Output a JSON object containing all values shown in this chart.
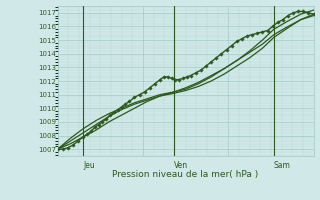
{
  "title": "Pression niveau de la mer( hPa )",
  "bg_color": "#d0e8e8",
  "grid_color_major": "#a0c8c8",
  "grid_color_minor": "#b8d8d8",
  "line_color": "#2d5a1b",
  "marker_color": "#2d5a1b",
  "tick_label_color": "#2d5a1b",
  "vline_color": "#2d5a1b",
  "xlabel_color": "#2d5a1b",
  "ylim": [
    1006.5,
    1017.5
  ],
  "yticks": [
    1007,
    1008,
    1009,
    1010,
    1011,
    1012,
    1013,
    1014,
    1015,
    1016,
    1017
  ],
  "day_labels": [
    "Jeu",
    "Ven",
    "Sam"
  ],
  "day_positions": [
    0.1,
    0.455,
    0.845
  ],
  "xlim": [
    0.0,
    1.0
  ],
  "lines": [
    {
      "x": [
        0.0,
        0.02,
        0.04,
        0.06,
        0.08,
        0.1,
        0.115,
        0.13,
        0.145,
        0.16,
        0.175,
        0.19,
        0.205,
        0.22,
        0.235,
        0.25,
        0.265,
        0.28,
        0.3,
        0.32,
        0.34,
        0.36,
        0.38,
        0.4,
        0.415,
        0.43,
        0.445,
        0.46,
        0.475,
        0.49,
        0.505,
        0.52,
        0.54,
        0.56,
        0.58,
        0.6,
        0.62,
        0.64,
        0.66,
        0.68,
        0.7,
        0.72,
        0.74,
        0.76,
        0.78,
        0.8,
        0.82,
        0.84,
        0.86,
        0.88,
        0.9,
        0.92,
        0.94,
        0.96,
        0.98,
        1.0
      ],
      "y": [
        1007.0,
        1007.0,
        1007.1,
        1007.3,
        1007.6,
        1007.9,
        1008.1,
        1008.3,
        1008.6,
        1008.8,
        1009.0,
        1009.2,
        1009.5,
        1009.7,
        1009.9,
        1010.1,
        1010.3,
        1010.5,
        1010.8,
        1011.0,
        1011.2,
        1011.5,
        1011.8,
        1012.1,
        1012.3,
        1012.3,
        1012.2,
        1012.1,
        1012.1,
        1012.2,
        1012.3,
        1012.4,
        1012.6,
        1012.8,
        1013.1,
        1013.4,
        1013.7,
        1014.0,
        1014.3,
        1014.6,
        1014.9,
        1015.1,
        1015.3,
        1015.4,
        1015.5,
        1015.6,
        1015.7,
        1016.0,
        1016.3,
        1016.5,
        1016.8,
        1017.0,
        1017.1,
        1017.1,
        1017.0,
        1016.9
      ],
      "has_markers": true,
      "linewidth": 1.0
    },
    {
      "x": [
        0.0,
        0.05,
        0.1,
        0.15,
        0.2,
        0.25,
        0.3,
        0.35,
        0.4,
        0.455,
        0.5,
        0.55,
        0.6,
        0.65,
        0.7,
        0.75,
        0.8,
        0.845,
        0.9,
        0.95,
        1.0
      ],
      "y": [
        1007.0,
        1007.4,
        1007.9,
        1008.4,
        1009.0,
        1009.5,
        1010.0,
        1010.5,
        1010.9,
        1011.2,
        1011.5,
        1011.9,
        1012.4,
        1012.9,
        1013.5,
        1014.1,
        1014.7,
        1015.4,
        1016.0,
        1016.5,
        1016.8
      ],
      "has_markers": false,
      "linewidth": 0.9
    },
    {
      "x": [
        0.0,
        0.05,
        0.1,
        0.15,
        0.2,
        0.25,
        0.3,
        0.35,
        0.4,
        0.455,
        0.5,
        0.55,
        0.6,
        0.65,
        0.7,
        0.75,
        0.8,
        0.845,
        0.9,
        0.95,
        1.0
      ],
      "y": [
        1007.0,
        1007.6,
        1008.2,
        1008.8,
        1009.4,
        1009.9,
        1010.3,
        1010.6,
        1010.9,
        1011.1,
        1011.3,
        1011.6,
        1012.0,
        1012.5,
        1013.1,
        1013.7,
        1014.4,
        1015.2,
        1015.9,
        1016.5,
        1016.9
      ],
      "has_markers": false,
      "linewidth": 0.9
    },
    {
      "x": [
        0.0,
        0.05,
        0.1,
        0.15,
        0.2,
        0.25,
        0.3,
        0.35,
        0.4,
        0.455,
        0.5,
        0.55,
        0.6,
        0.65,
        0.7,
        0.75,
        0.8,
        0.845,
        0.9,
        0.95,
        1.0
      ],
      "y": [
        1007.0,
        1007.8,
        1008.5,
        1009.1,
        1009.6,
        1010.0,
        1010.4,
        1010.7,
        1011.0,
        1011.2,
        1011.4,
        1011.8,
        1012.3,
        1012.9,
        1013.5,
        1014.2,
        1015.0,
        1015.8,
        1016.4,
        1016.9,
        1017.2
      ],
      "has_markers": false,
      "linewidth": 0.9
    }
  ],
  "minor_xticks_per_day": 8,
  "num_days": 3
}
